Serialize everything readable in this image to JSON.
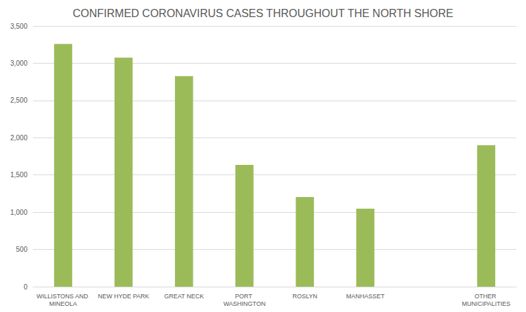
{
  "chart_data": {
    "type": "bar",
    "title": "CONFIRMED CORONAVIRUS CASES THROUGHOUT THE NORTH SHORE",
    "categories": [
      "WILLISTONS AND MINEOLA",
      "NEW HYDE PARK",
      "GREAT NECK",
      "PORT WASHINGTON",
      "ROSLYN",
      "MANHASSET",
      null,
      "OTHER MUNICIPALITIES"
    ],
    "values": [
      3260,
      3075,
      2828,
      1635,
      1203,
      1047,
      null,
      1900
    ],
    "color": "#9bbb59",
    "ylim": [
      0,
      3500
    ],
    "yticks": [
      0,
      500,
      {
        "value": 1000,
        "label": "1,000"
      },
      {
        "value": 1500,
        "label": "1,500"
      },
      {
        "value": 2000,
        "label": "2,000"
      },
      {
        "value": 2500,
        "label": "2,500"
      },
      {
        "value": 3000,
        "label": "3,000"
      },
      {
        "value": 3500,
        "label": "3,500"
      }
    ],
    "grid": true
  }
}
